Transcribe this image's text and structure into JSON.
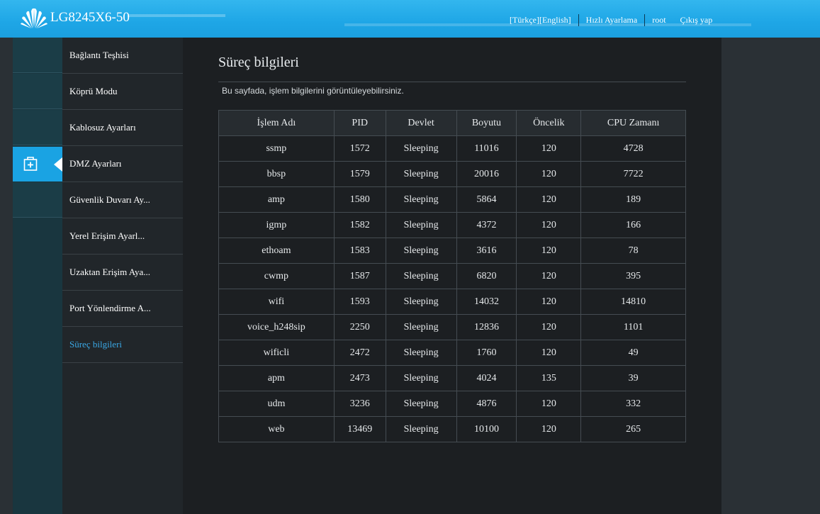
{
  "header": {
    "product_name": "LG8245X6-50",
    "lang_turkish": "[Türkçe]",
    "lang_english": "[English]",
    "quick_setup": "Hızlı Ayarlama",
    "user": "root",
    "logout": "Çıkış yap"
  },
  "sidebar": {
    "items": [
      {
        "label": "Bağlantı Teşhisi"
      },
      {
        "label": "Köprü Modu"
      },
      {
        "label": "Kablosuz Ayarları"
      },
      {
        "label": "DMZ Ayarları"
      },
      {
        "label": "Güvenlik Duvarı Ay..."
      },
      {
        "label": "Yerel Erişim Ayarl..."
      },
      {
        "label": "Uzaktan Erişim Aya..."
      },
      {
        "label": "Port Yönlendirme A..."
      },
      {
        "label": "Süreç bilgileri"
      }
    ],
    "active_index": 8,
    "active_icon": "plus-box-icon"
  },
  "main": {
    "title": "Süreç bilgileri",
    "description": "Bu sayfada, işlem bilgilerini görüntüleyebilirsiniz.",
    "table": {
      "headers": [
        "İşlem Adı",
        "PID",
        "Devlet",
        "Boyutu",
        "Öncelik",
        "CPU Zamanı"
      ],
      "rows": [
        [
          "ssmp",
          "1572",
          "Sleeping",
          "11016",
          "120",
          "4728"
        ],
        [
          "bbsp",
          "1579",
          "Sleeping",
          "20016",
          "120",
          "7722"
        ],
        [
          "amp",
          "1580",
          "Sleeping",
          "5864",
          "120",
          "189"
        ],
        [
          "igmp",
          "1582",
          "Sleeping",
          "4372",
          "120",
          "166"
        ],
        [
          "ethoam",
          "1583",
          "Sleeping",
          "3616",
          "120",
          "78"
        ],
        [
          "cwmp",
          "1587",
          "Sleeping",
          "6820",
          "120",
          "395"
        ],
        [
          "wifi",
          "1593",
          "Sleeping",
          "14032",
          "120",
          "14810"
        ],
        [
          "voice_h248sip",
          "2250",
          "Sleeping",
          "12836",
          "120",
          "1101"
        ],
        [
          "wificli",
          "2472",
          "Sleeping",
          "1760",
          "120",
          "49"
        ],
        [
          "apm",
          "2473",
          "Sleeping",
          "4024",
          "135",
          "39"
        ],
        [
          "udm",
          "3236",
          "Sleeping",
          "4876",
          "120",
          "332"
        ],
        [
          "web",
          "13469",
          "Sleeping",
          "10100",
          "120",
          "265"
        ]
      ]
    }
  },
  "colors": {
    "header_blue": "#1ea6e6",
    "active_link": "#3aa8e6",
    "lang_active": "#e23a2a"
  }
}
